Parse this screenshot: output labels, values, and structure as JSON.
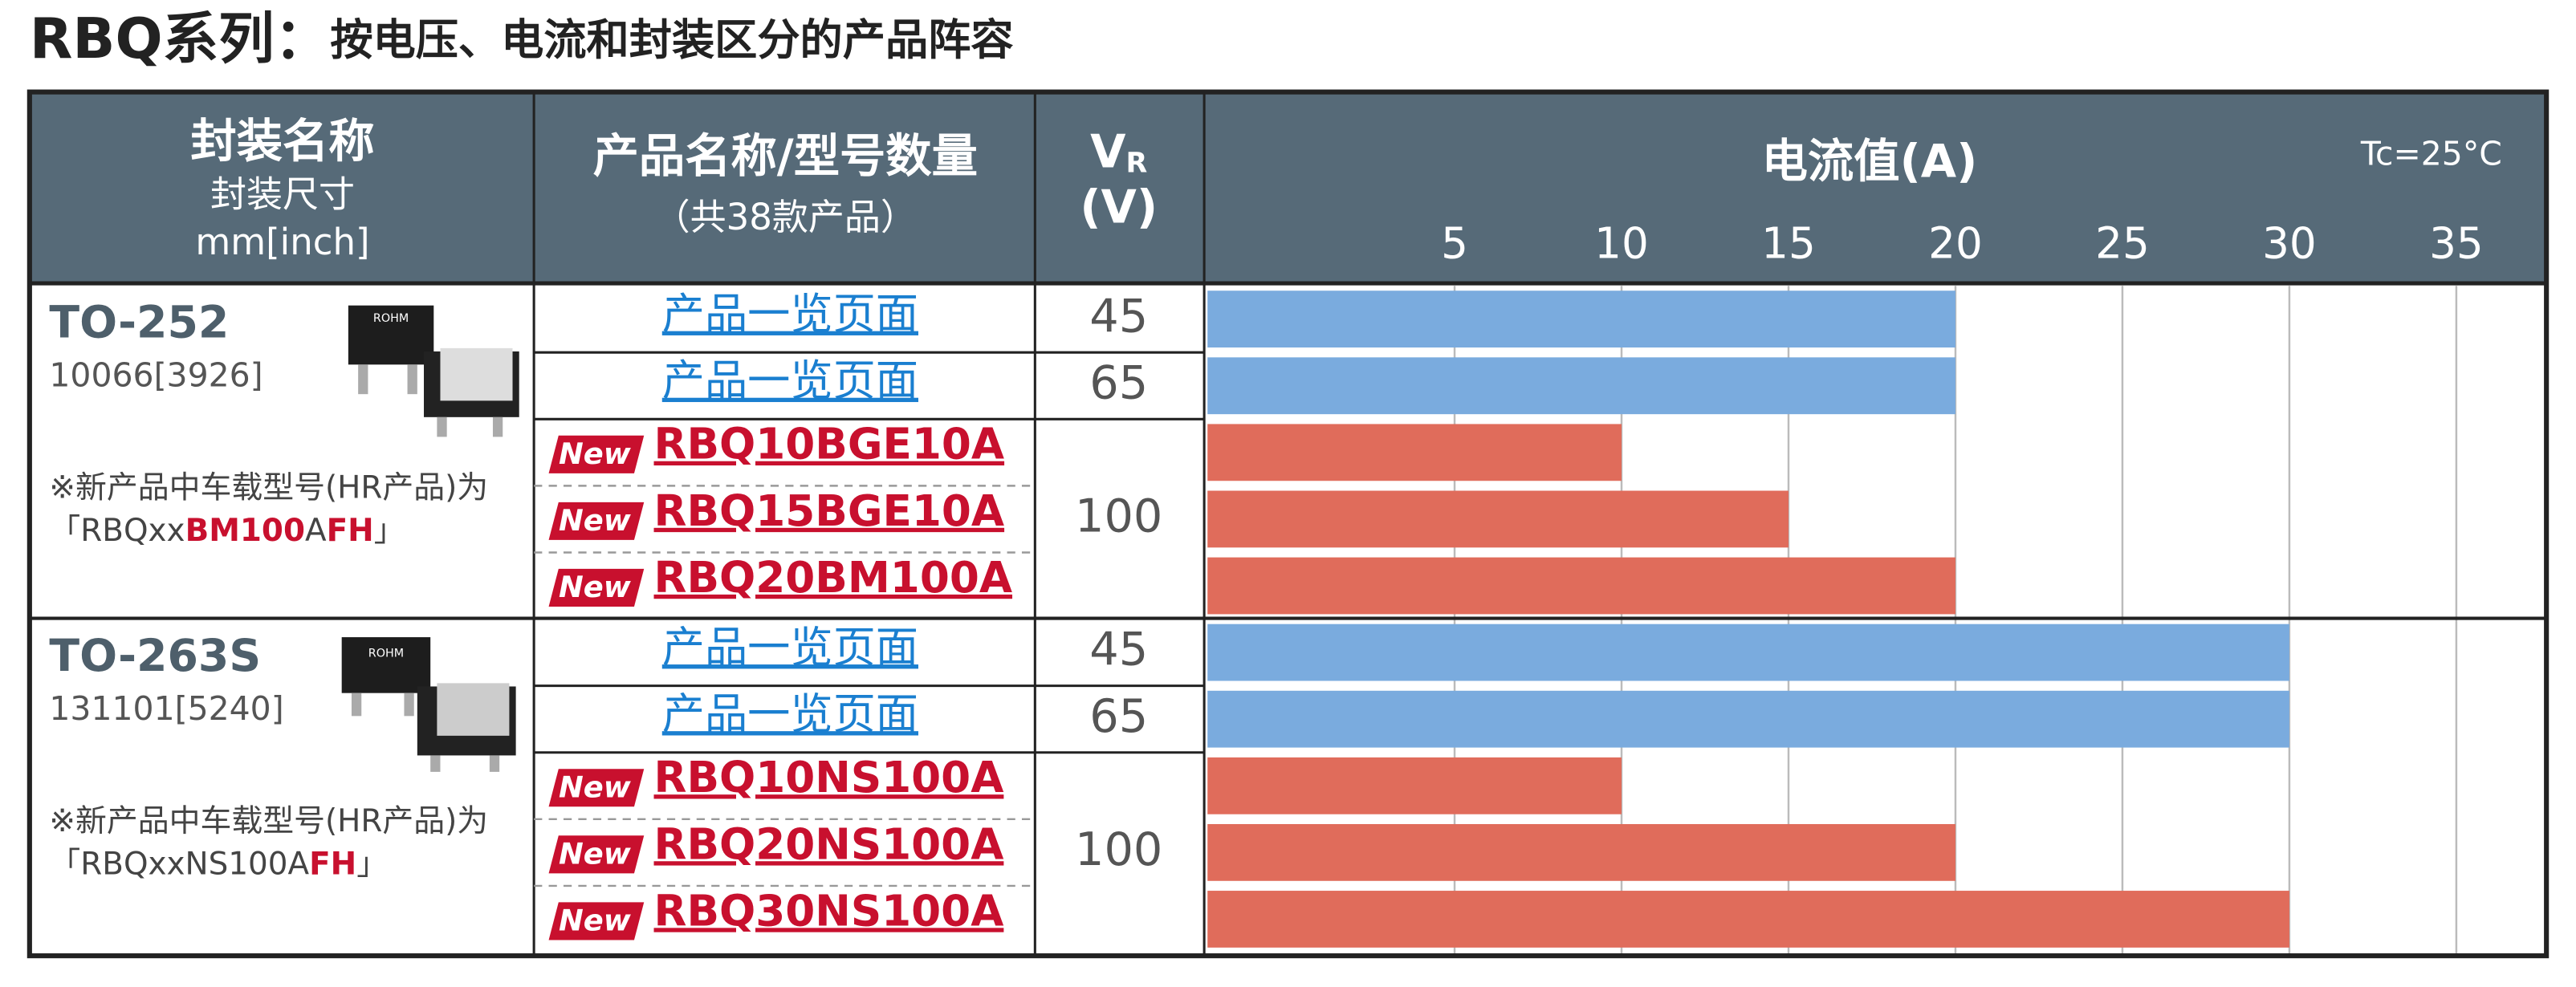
{
  "title": {
    "series": "RBQ系列：",
    "text": "按电压、电流和封装区分的产品阵容"
  },
  "header": {
    "package": "封装名称",
    "package_size": "封装尺寸",
    "size_unit": "mm[inch]",
    "product": "产品名称/型号数量",
    "product_count": "（共38款产品）",
    "voltage": "V",
    "voltage_sub": "R",
    "voltage_unit": "(V)",
    "current": "电流值(A)",
    "condition": "Tc=25°C"
  },
  "chart_data": {
    "type": "bar",
    "xlim": [
      -2.4,
      37.6
    ],
    "xticks": [
      5,
      10,
      15,
      20,
      25,
      30,
      35
    ],
    "grid": true
  },
  "groups": [
    {
      "package": "TO-252",
      "size": "10066[3926]",
      "note": "※新产品中车载型号(HR产品)为",
      "note_code": [
        {
          "text": "「RBQxx",
          "highlight": false
        },
        {
          "text": "BM100",
          "highlight": true
        },
        {
          "text": "A",
          "highlight": false
        },
        {
          "text": "FH",
          "highlight": true
        },
        {
          "text": "」",
          "highlight": false
        }
      ],
      "blocks": [
        {
          "voltage": 45,
          "products": [
            {
              "name": "产品一览页面",
              "current": 20,
              "color": "#7aabde"
            }
          ]
        },
        {
          "voltage": 65,
          "products": [
            {
              "name": "产品一览页面",
              "current": 20,
              "color": "#7aabde"
            }
          ]
        },
        {
          "voltage": 100,
          "products": [
            {
              "badge": "New",
              "name": "RBQ10BGE10A",
              "current": 10,
              "color": "#e06c5b"
            },
            {
              "badge": "New",
              "name": "RBQ15BGE10A",
              "current": 15,
              "color": "#e06c5b"
            },
            {
              "badge": "New",
              "name": "RBQ20BM100A",
              "current": 20,
              "color": "#e06c5b"
            }
          ]
        }
      ]
    },
    {
      "package": "TO-263S",
      "size": "131101[5240]",
      "note": "※新产品中车载型号(HR产品)为",
      "note_code": [
        {
          "text": "「RBQxxNS100A",
          "highlight": false
        },
        {
          "text": "FH",
          "highlight": true
        },
        {
          "text": "」",
          "highlight": false
        }
      ],
      "blocks": [
        {
          "voltage": 45,
          "products": [
            {
              "name": "产品一览页面",
              "current": 30,
              "color": "#7aabde"
            }
          ]
        },
        {
          "voltage": 65,
          "products": [
            {
              "name": "产品一览页面",
              "current": 30,
              "color": "#7aabde"
            }
          ]
        },
        {
          "voltage": 100,
          "products": [
            {
              "badge": "New",
              "name": "RBQ10NS100A",
              "current": 10,
              "color": "#e06c5b"
            },
            {
              "badge": "New",
              "name": "RBQ20NS100A",
              "current": 20,
              "color": "#e06c5b"
            },
            {
              "badge": "New",
              "name": "RBQ30NS100A",
              "current": 30,
              "color": "#e06c5b"
            }
          ]
        }
      ]
    }
  ]
}
